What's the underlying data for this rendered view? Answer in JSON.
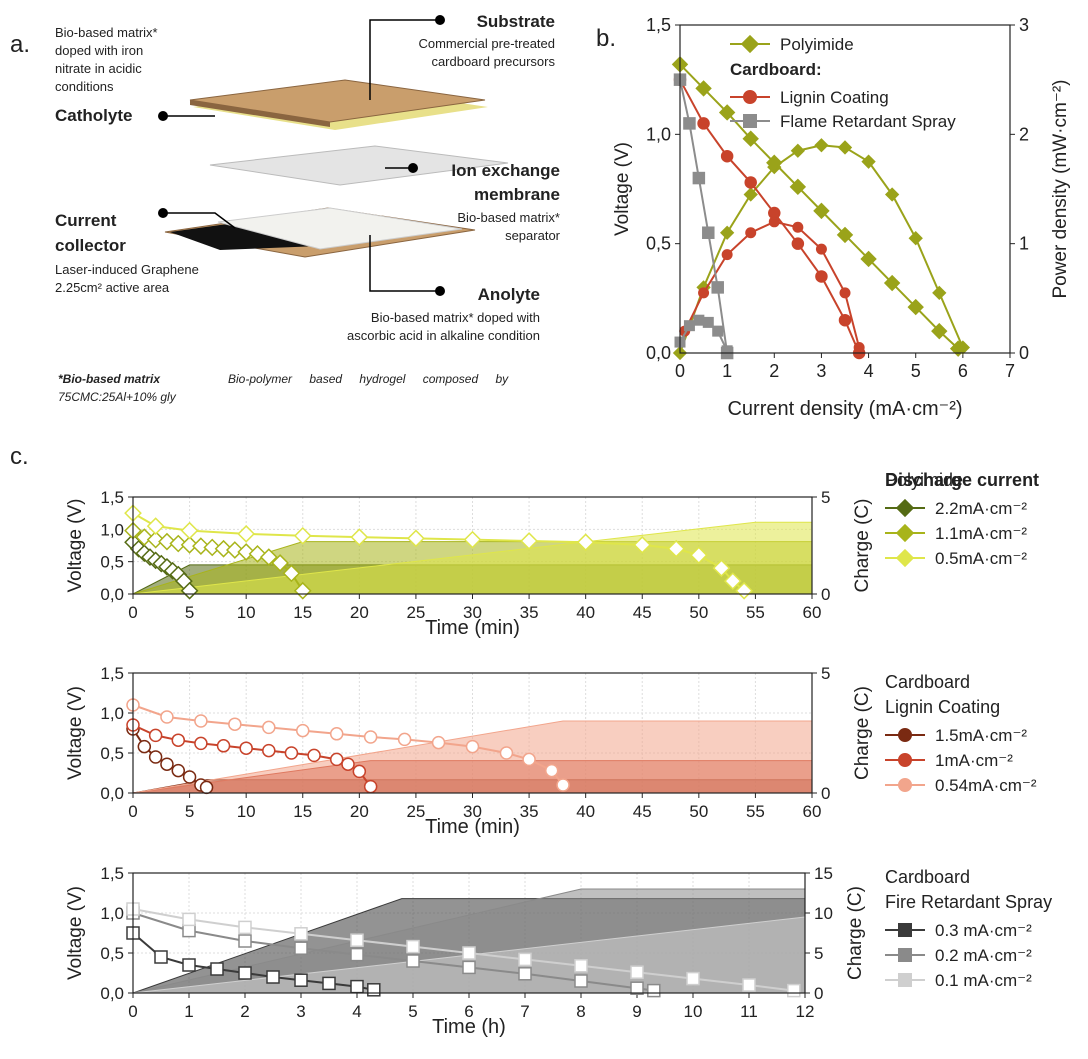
{
  "diagram": {
    "label": "a.",
    "catholyte_desc": [
      "Bio-based matrix*",
      "doped with iron",
      "nitrate in acidic",
      "conditions"
    ],
    "catholyte": "Catholyte",
    "substrate": "Substrate",
    "substrate_desc": [
      "Commercial pre-treated",
      "cardboard precursors"
    ],
    "membrane": [
      "Ion exchange",
      "membrane"
    ],
    "membrane_desc": [
      "Bio-based matrix*",
      "separator"
    ],
    "collector": [
      "Current",
      "collector"
    ],
    "collector_desc": [
      "Laser-induced Graphene",
      "2.25cm² active area"
    ],
    "anolyte": "Anolyte",
    "anolyte_desc": [
      "Bio-based matrix* doped with",
      "ascorbic acid in alkaline condition"
    ],
    "footnote_term": "*Bio-based matrix",
    "footnote_text": "Bio-polymer based hydrogel composed by",
    "footnote_line2": "75CMC:25Al+10% gly"
  },
  "chart_data": [
    {
      "type": "line",
      "panel_label": "b.",
      "xlabel": "Current density (mA·cm⁻²)",
      "ylabel": "Voltage (V)",
      "y2label": "Power density (mW·cm⁻²)",
      "xlim": [
        0,
        7
      ],
      "xticks": [
        0,
        1,
        2,
        3,
        4,
        5,
        6,
        7
      ],
      "ylim": [
        0,
        1.5
      ],
      "yticks": [
        {
          "value": 0,
          "label": "0,0"
        },
        {
          "value": 0.5,
          "label": "0,5"
        },
        {
          "value": 1,
          "label": "1,0"
        },
        {
          "value": 1.5,
          "label": "1,5"
        }
      ],
      "y2lim": [
        0,
        3
      ],
      "y2ticks": [
        0,
        1,
        2,
        3
      ],
      "legend_group": "Cardboard:",
      "series": [
        {
          "name": "Polyimide",
          "color": "#9aa31a",
          "marker": "diamond",
          "x": [
            0,
            0.5,
            1,
            1.5,
            2,
            2.5,
            3,
            3.5,
            4,
            4.5,
            5,
            5.5,
            5.9
          ],
          "values": [
            1.32,
            1.21,
            1.1,
            0.98,
            0.87,
            0.76,
            0.65,
            0.54,
            0.43,
            0.32,
            0.21,
            0.1,
            0.02
          ],
          "y2_x": [
            0,
            0.5,
            1,
            1.5,
            2,
            2.5,
            3,
            3.5,
            4,
            4.5,
            5,
            5.5,
            6
          ],
          "y2_values": [
            0,
            0.6,
            1.1,
            1.45,
            1.7,
            1.85,
            1.9,
            1.88,
            1.75,
            1.45,
            1.05,
            0.55,
            0.05
          ]
        },
        {
          "name": "Lignin Coating",
          "color": "#c8432b",
          "marker": "circle",
          "x": [
            0,
            0.5,
            1,
            1.5,
            2,
            2.5,
            3,
            3.5,
            3.8
          ],
          "values": [
            1.25,
            1.05,
            0.9,
            0.78,
            0.64,
            0.5,
            0.35,
            0.15,
            0
          ],
          "y2_x": [
            0.1,
            0.5,
            1,
            1.5,
            2,
            2.5,
            3,
            3.5,
            3.8
          ],
          "y2_values": [
            0.2,
            0.55,
            0.9,
            1.1,
            1.2,
            1.15,
            0.95,
            0.55,
            0.05
          ]
        },
        {
          "name": "Flame Retardant Spray",
          "color": "#8c8c8c",
          "marker": "square",
          "x": [
            0,
            0.2,
            0.4,
            0.6,
            0.8,
            1
          ],
          "values": [
            1.25,
            1.05,
            0.8,
            0.55,
            0.3,
            0
          ],
          "y2_x": [
            0,
            0.2,
            0.4,
            0.6,
            0.8,
            1
          ],
          "y2_values": [
            0.1,
            0.25,
            0.3,
            0.28,
            0.2,
            0.02
          ]
        }
      ]
    },
    {
      "type": "line",
      "panel_label": "c.",
      "grid": true,
      "y2_fill": true,
      "marker_fill": "#ffffff",
      "xlabel": "Time (min)",
      "ylabel": "Voltage (V)",
      "y2label": "Charge (C)",
      "xlim": [
        0,
        60
      ],
      "xticks": [
        0,
        5,
        10,
        15,
        20,
        25,
        30,
        35,
        40,
        45,
        50,
        55,
        60
      ],
      "ylim": [
        0,
        1.5
      ],
      "yticks": [
        {
          "value": 0,
          "label": "0,0"
        },
        {
          "value": 0.5,
          "label": "0,5"
        },
        {
          "value": 1,
          "label": "1,0"
        },
        {
          "value": 1.5,
          "label": "1,5"
        }
      ],
      "y2lim": [
        0,
        5
      ],
      "y2ticks": [
        0,
        5
      ],
      "legend_title": "Discharge current",
      "legend_group": "Polyimide",
      "legend_group_color": "#a8b41a",
      "series": [
        {
          "name": "2.2mA·cm⁻²",
          "color": "#556b14",
          "marker": "diamond",
          "x": [
            0,
            0.5,
            1,
            1.5,
            2,
            2.5,
            3,
            3.5,
            4,
            4.5,
            5
          ],
          "values": [
            0.8,
            0.7,
            0.63,
            0.57,
            0.52,
            0.47,
            0.42,
            0.36,
            0.3,
            0.2,
            0.05
          ],
          "y2_x": [
            0,
            5,
            60
          ],
          "y2_values": [
            0,
            1.5,
            1.5
          ]
        },
        {
          "name": "1.1mA·cm⁻²",
          "color": "#a8b41a",
          "marker": "diamond",
          "x": [
            0,
            1,
            2,
            3,
            4,
            5,
            6,
            7,
            8,
            9,
            10,
            11,
            12,
            13,
            14,
            15
          ],
          "values": [
            0.98,
            0.88,
            0.84,
            0.81,
            0.78,
            0.76,
            0.74,
            0.72,
            0.7,
            0.68,
            0.65,
            0.62,
            0.57,
            0.48,
            0.32,
            0.05
          ],
          "y2_x": [
            0,
            15,
            60
          ],
          "y2_values": [
            0,
            2.7,
            2.7
          ]
        },
        {
          "name": "0.5mA·cm⁻²",
          "color": "#dfe64a",
          "marker": "diamond",
          "x": [
            0,
            2,
            5,
            10,
            15,
            20,
            25,
            30,
            35,
            40,
            45,
            48,
            50,
            52,
            53,
            54
          ],
          "values": [
            1.25,
            1.05,
            0.98,
            0.93,
            0.9,
            0.88,
            0.86,
            0.84,
            0.82,
            0.8,
            0.76,
            0.7,
            0.6,
            0.4,
            0.2,
            0.05
          ],
          "y2_x": [
            0,
            55,
            60
          ],
          "y2_values": [
            0,
            3.7,
            3.7
          ]
        }
      ]
    },
    {
      "type": "line",
      "grid": true,
      "y2_fill": true,
      "marker_fill": "#ffffff",
      "xlabel": "Time (min)",
      "ylabel": "Voltage (V)",
      "y2label": "Charge (C)",
      "xlim": [
        0,
        60
      ],
      "xticks": [
        0,
        5,
        10,
        15,
        20,
        25,
        30,
        35,
        40,
        45,
        50,
        55,
        60
      ],
      "ylim": [
        0,
        1.5
      ],
      "yticks": [
        {
          "value": 0,
          "label": "0,0"
        },
        {
          "value": 0.5,
          "label": "0,5"
        },
        {
          "value": 1,
          "label": "1,0"
        },
        {
          "value": 1.5,
          "label": "1,5"
        }
      ],
      "y2lim": [
        0,
        5
      ],
      "y2ticks": [
        0,
        5
      ],
      "legend_title": "Cardboard",
      "legend_group": "Lignin Coating",
      "legend_group_color": "#c8432b",
      "series": [
        {
          "name": "1.5mA·cm⁻²",
          "color": "#7a2a12",
          "marker": "circle",
          "x": [
            0,
            1,
            2,
            3,
            4,
            5,
            6,
            6.5
          ],
          "values": [
            0.8,
            0.58,
            0.45,
            0.36,
            0.28,
            0.2,
            0.1,
            0.07
          ],
          "y2_x": [
            0,
            6.5,
            60
          ],
          "y2_values": [
            0,
            0.55,
            0.55
          ]
        },
        {
          "name": "1mA·cm⁻²",
          "color": "#c8432b",
          "marker": "circle",
          "x": [
            0,
            2,
            4,
            6,
            8,
            10,
            12,
            14,
            16,
            18,
            19,
            20,
            21
          ],
          "values": [
            0.85,
            0.72,
            0.66,
            0.62,
            0.59,
            0.56,
            0.53,
            0.5,
            0.47,
            0.42,
            0.36,
            0.27,
            0.08
          ],
          "y2_x": [
            0,
            21,
            60
          ],
          "y2_values": [
            0,
            1.35,
            1.35
          ]
        },
        {
          "name": "0.54mA·cm⁻²",
          "color": "#f2a58c",
          "marker": "circle",
          "x": [
            0,
            3,
            6,
            9,
            12,
            15,
            18,
            21,
            24,
            27,
            30,
            33,
            35,
            37,
            38
          ],
          "values": [
            1.1,
            0.95,
            0.9,
            0.86,
            0.82,
            0.78,
            0.74,
            0.7,
            0.67,
            0.63,
            0.58,
            0.5,
            0.42,
            0.28,
            0.1
          ],
          "y2_x": [
            0,
            38,
            60
          ],
          "y2_values": [
            0,
            3,
            3
          ]
        }
      ]
    },
    {
      "type": "line",
      "grid": true,
      "y2_fill": true,
      "marker_fill": "#ffffff",
      "xlabel": "Time (h)",
      "ylabel": "Voltage (V)",
      "y2label": "Charge (C)",
      "xlim": [
        0,
        12
      ],
      "xticks": [
        0,
        1,
        2,
        3,
        4,
        5,
        6,
        7,
        8,
        9,
        10,
        11,
        12
      ],
      "ylim": [
        0,
        1.5
      ],
      "yticks": [
        {
          "value": 0,
          "label": "0,0"
        },
        {
          "value": 0.5,
          "label": "0,5"
        },
        {
          "value": 1,
          "label": "1,0"
        },
        {
          "value": 1.5,
          "label": "1,5"
        }
      ],
      "y2lim": [
        0,
        15
      ],
      "y2ticks": [
        0,
        5,
        10,
        15
      ],
      "legend_title": "Cardboard",
      "legend_group": "Fire Retardant Spray",
      "legend_group_color": "#8c8c8c",
      "series": [
        {
          "name": "0.3 mA·cm⁻²",
          "color": "#3a3a3a",
          "marker": "square",
          "x": [
            0,
            0.5,
            1,
            1.5,
            2,
            2.5,
            3,
            3.5,
            4,
            4.3
          ],
          "values": [
            0.75,
            0.45,
            0.35,
            0.3,
            0.25,
            0.2,
            0.16,
            0.12,
            0.08,
            0.04
          ],
          "y2_x": [
            0,
            4.8,
            12
          ],
          "y2_values": [
            0,
            11.8,
            11.8
          ]
        },
        {
          "name": "0.2 mA·cm⁻²",
          "color": "#8a8a8a",
          "marker": "square",
          "x": [
            0,
            1,
            2,
            3,
            4,
            5,
            6,
            7,
            8,
            9,
            9.3
          ],
          "values": [
            1,
            0.78,
            0.65,
            0.56,
            0.48,
            0.4,
            0.32,
            0.24,
            0.15,
            0.06,
            0.03
          ],
          "y2_x": [
            0,
            8,
            12
          ],
          "y2_values": [
            0,
            13,
            13
          ]
        },
        {
          "name": "0.1 mA·cm⁻²",
          "color": "#cfcfcf",
          "marker": "square",
          "x": [
            0,
            1,
            2,
            3,
            4,
            5,
            6,
            7,
            8,
            9,
            10,
            11,
            11.8
          ],
          "values": [
            1.05,
            0.92,
            0.82,
            0.74,
            0.66,
            0.58,
            0.5,
            0.42,
            0.34,
            0.26,
            0.18,
            0.1,
            0.03
          ],
          "y2_x": [
            0,
            12
          ],
          "y2_values": [
            0,
            9.5
          ]
        }
      ]
    }
  ]
}
